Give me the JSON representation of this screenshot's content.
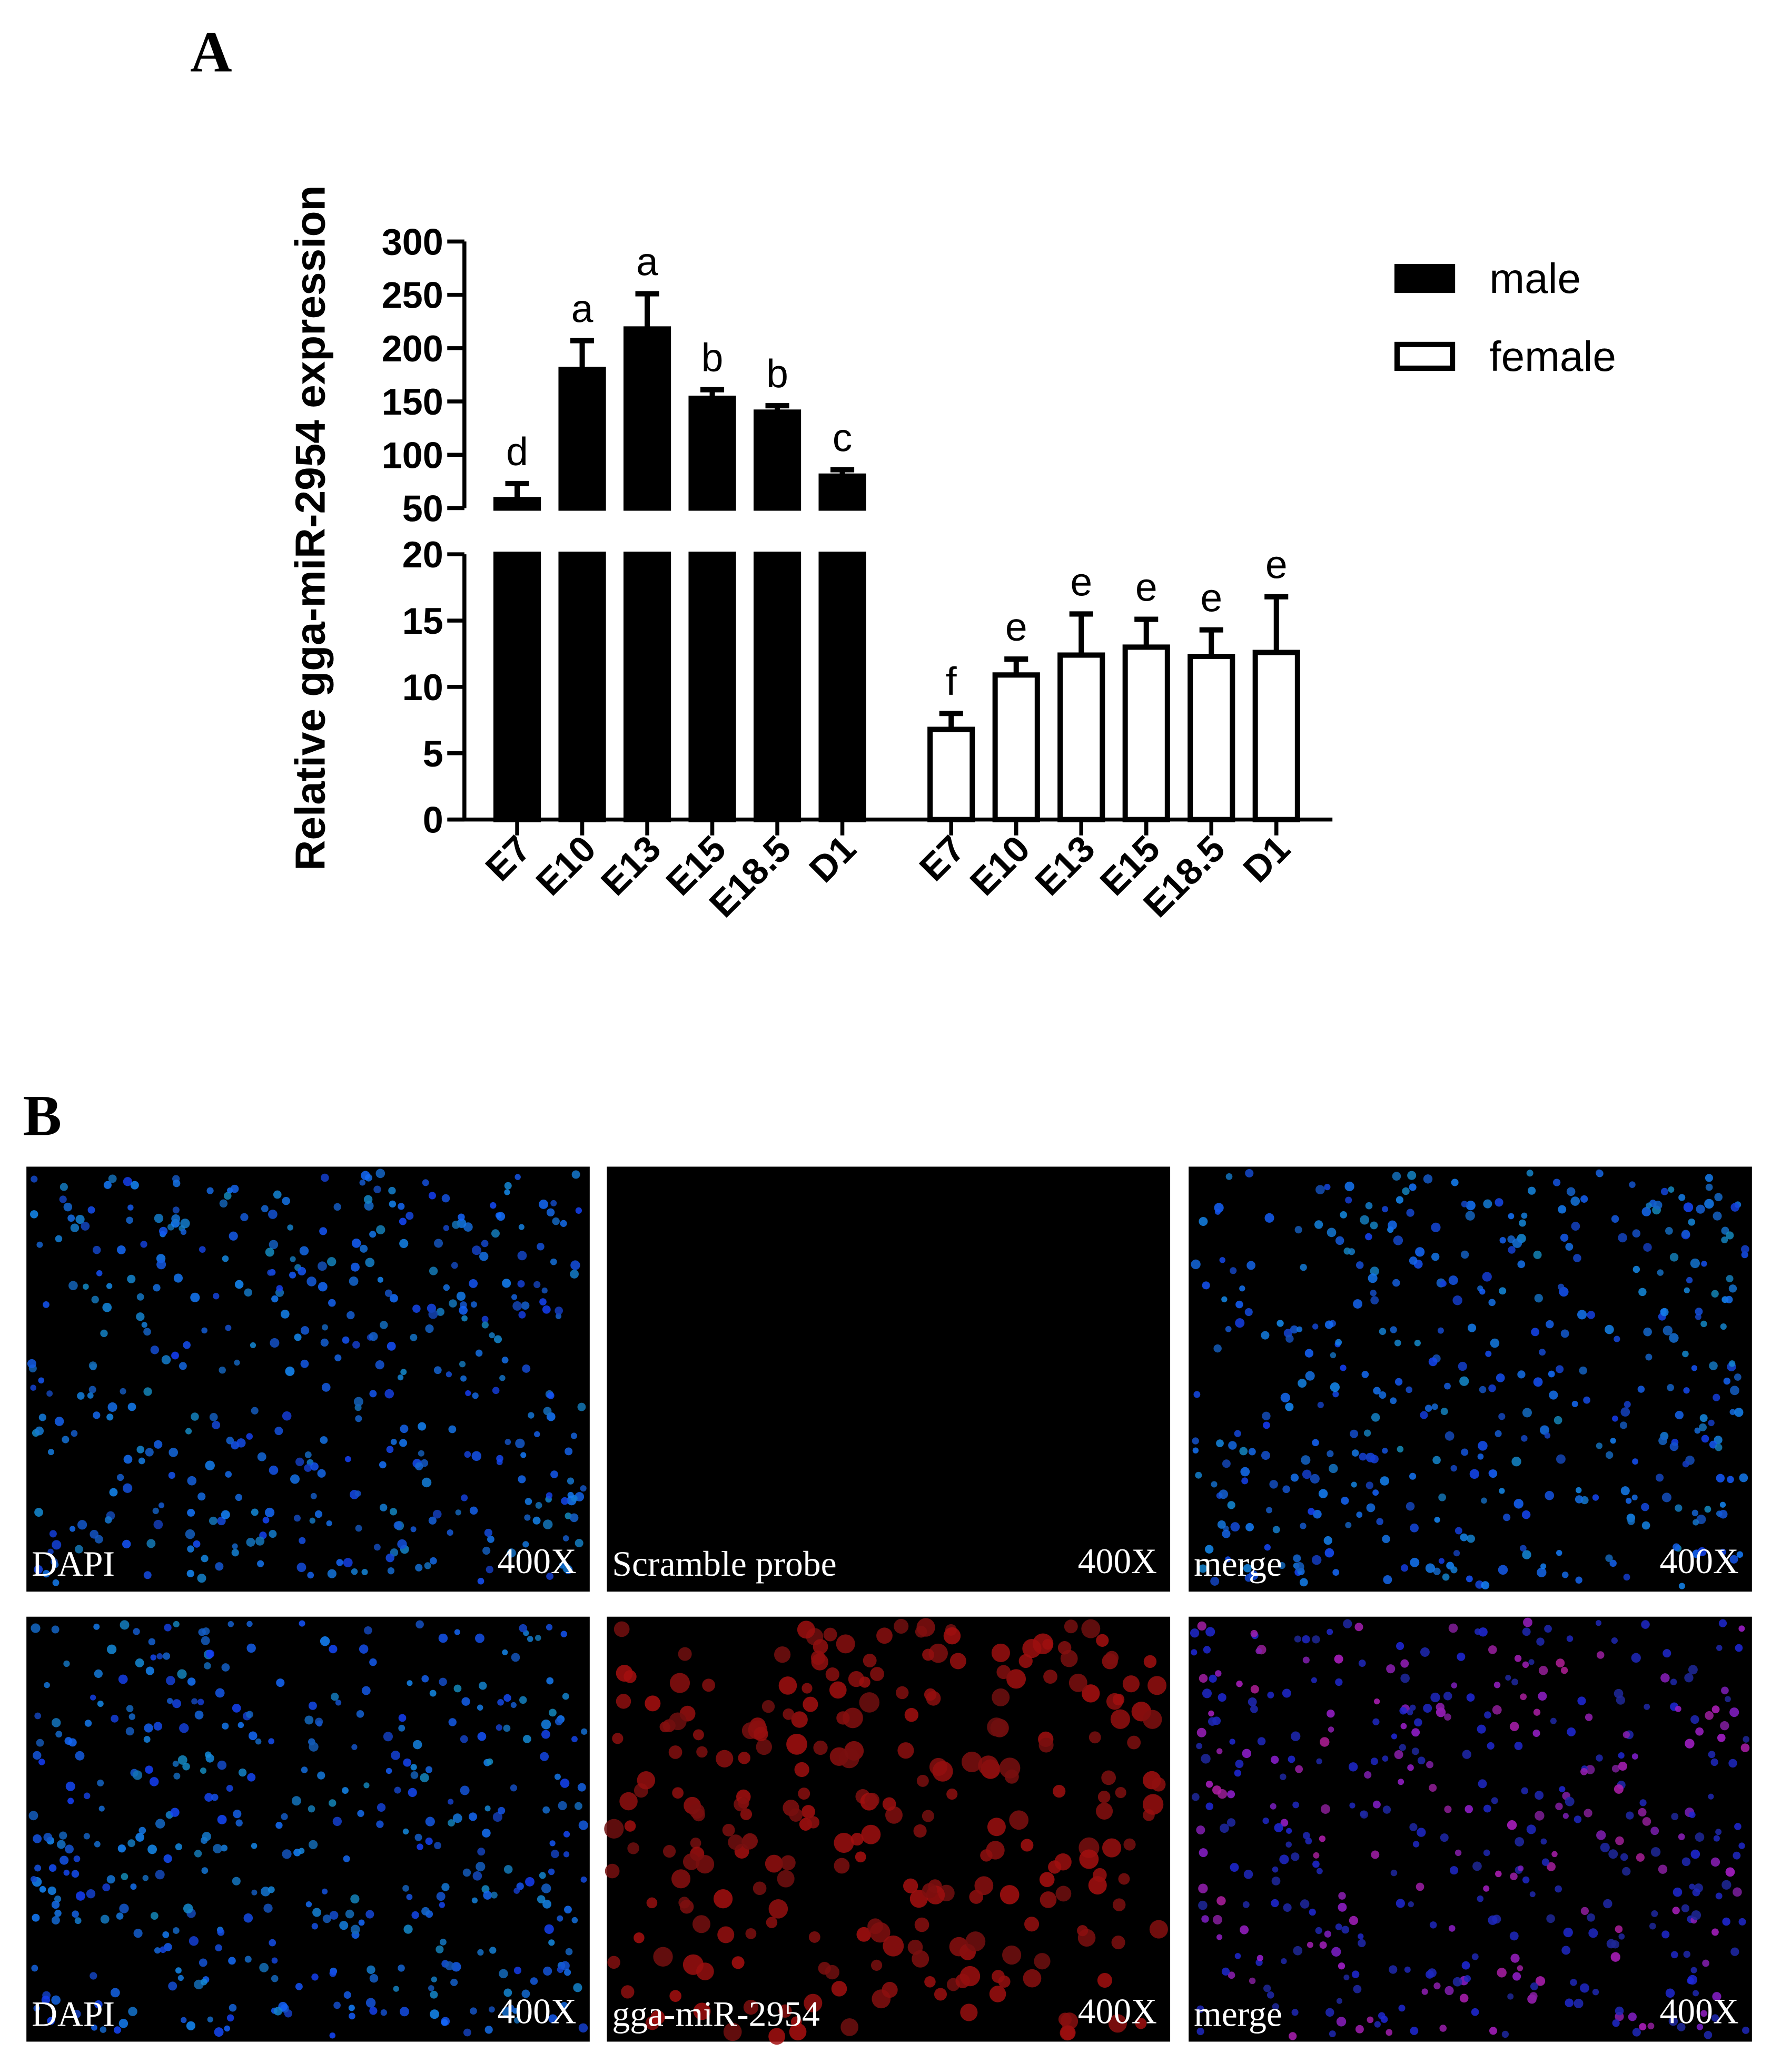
{
  "chart_data": {
    "type": "bar",
    "panel_label": "A",
    "ylabel": "Relative gga-miR-2954 expression",
    "categories": [
      "E7",
      "E10",
      "E13",
      "E15",
      "E18.5",
      "D1"
    ],
    "y_segments": [
      {
        "ylim": [
          0,
          20
        ],
        "yticks": [
          0,
          5,
          10,
          15,
          20
        ]
      },
      {
        "ylim": [
          50,
          300
        ],
        "yticks": [
          50,
          100,
          150,
          200,
          250,
          300
        ]
      }
    ],
    "series": [
      {
        "name": "male",
        "color": "#000000",
        "edgecolor": "#000000",
        "values": [
          58,
          180,
          218,
          153,
          140,
          80
        ],
        "errors": [
          15,
          27,
          33,
          8,
          6,
          6
        ],
        "annotations": [
          "d",
          "a",
          "a",
          "b",
          "b",
          "c"
        ]
      },
      {
        "name": "female",
        "color": "#ffffff",
        "edgecolor": "#000000",
        "values": [
          6.8,
          10.9,
          12.4,
          13,
          12.3,
          12.6
        ],
        "errors": [
          1.2,
          1.2,
          3.1,
          2.1,
          2,
          4.2
        ],
        "annotations": [
          "f",
          "e",
          "e",
          "e",
          "e",
          "e"
        ]
      }
    ],
    "legend": "upper right"
  },
  "panel_b": {
    "panel_label": "B",
    "images": [
      [
        {
          "left": "DAPI",
          "right": "400X"
        },
        {
          "left": "Scramble probe",
          "right": "400X"
        },
        {
          "left": "merge",
          "right": "400X"
        }
      ],
      [
        {
          "left": "DAPI",
          "right": "400X"
        },
        {
          "left": "gga-miR-2954",
          "right": "400X"
        },
        {
          "left": "merge",
          "right": "400X"
        }
      ]
    ]
  }
}
